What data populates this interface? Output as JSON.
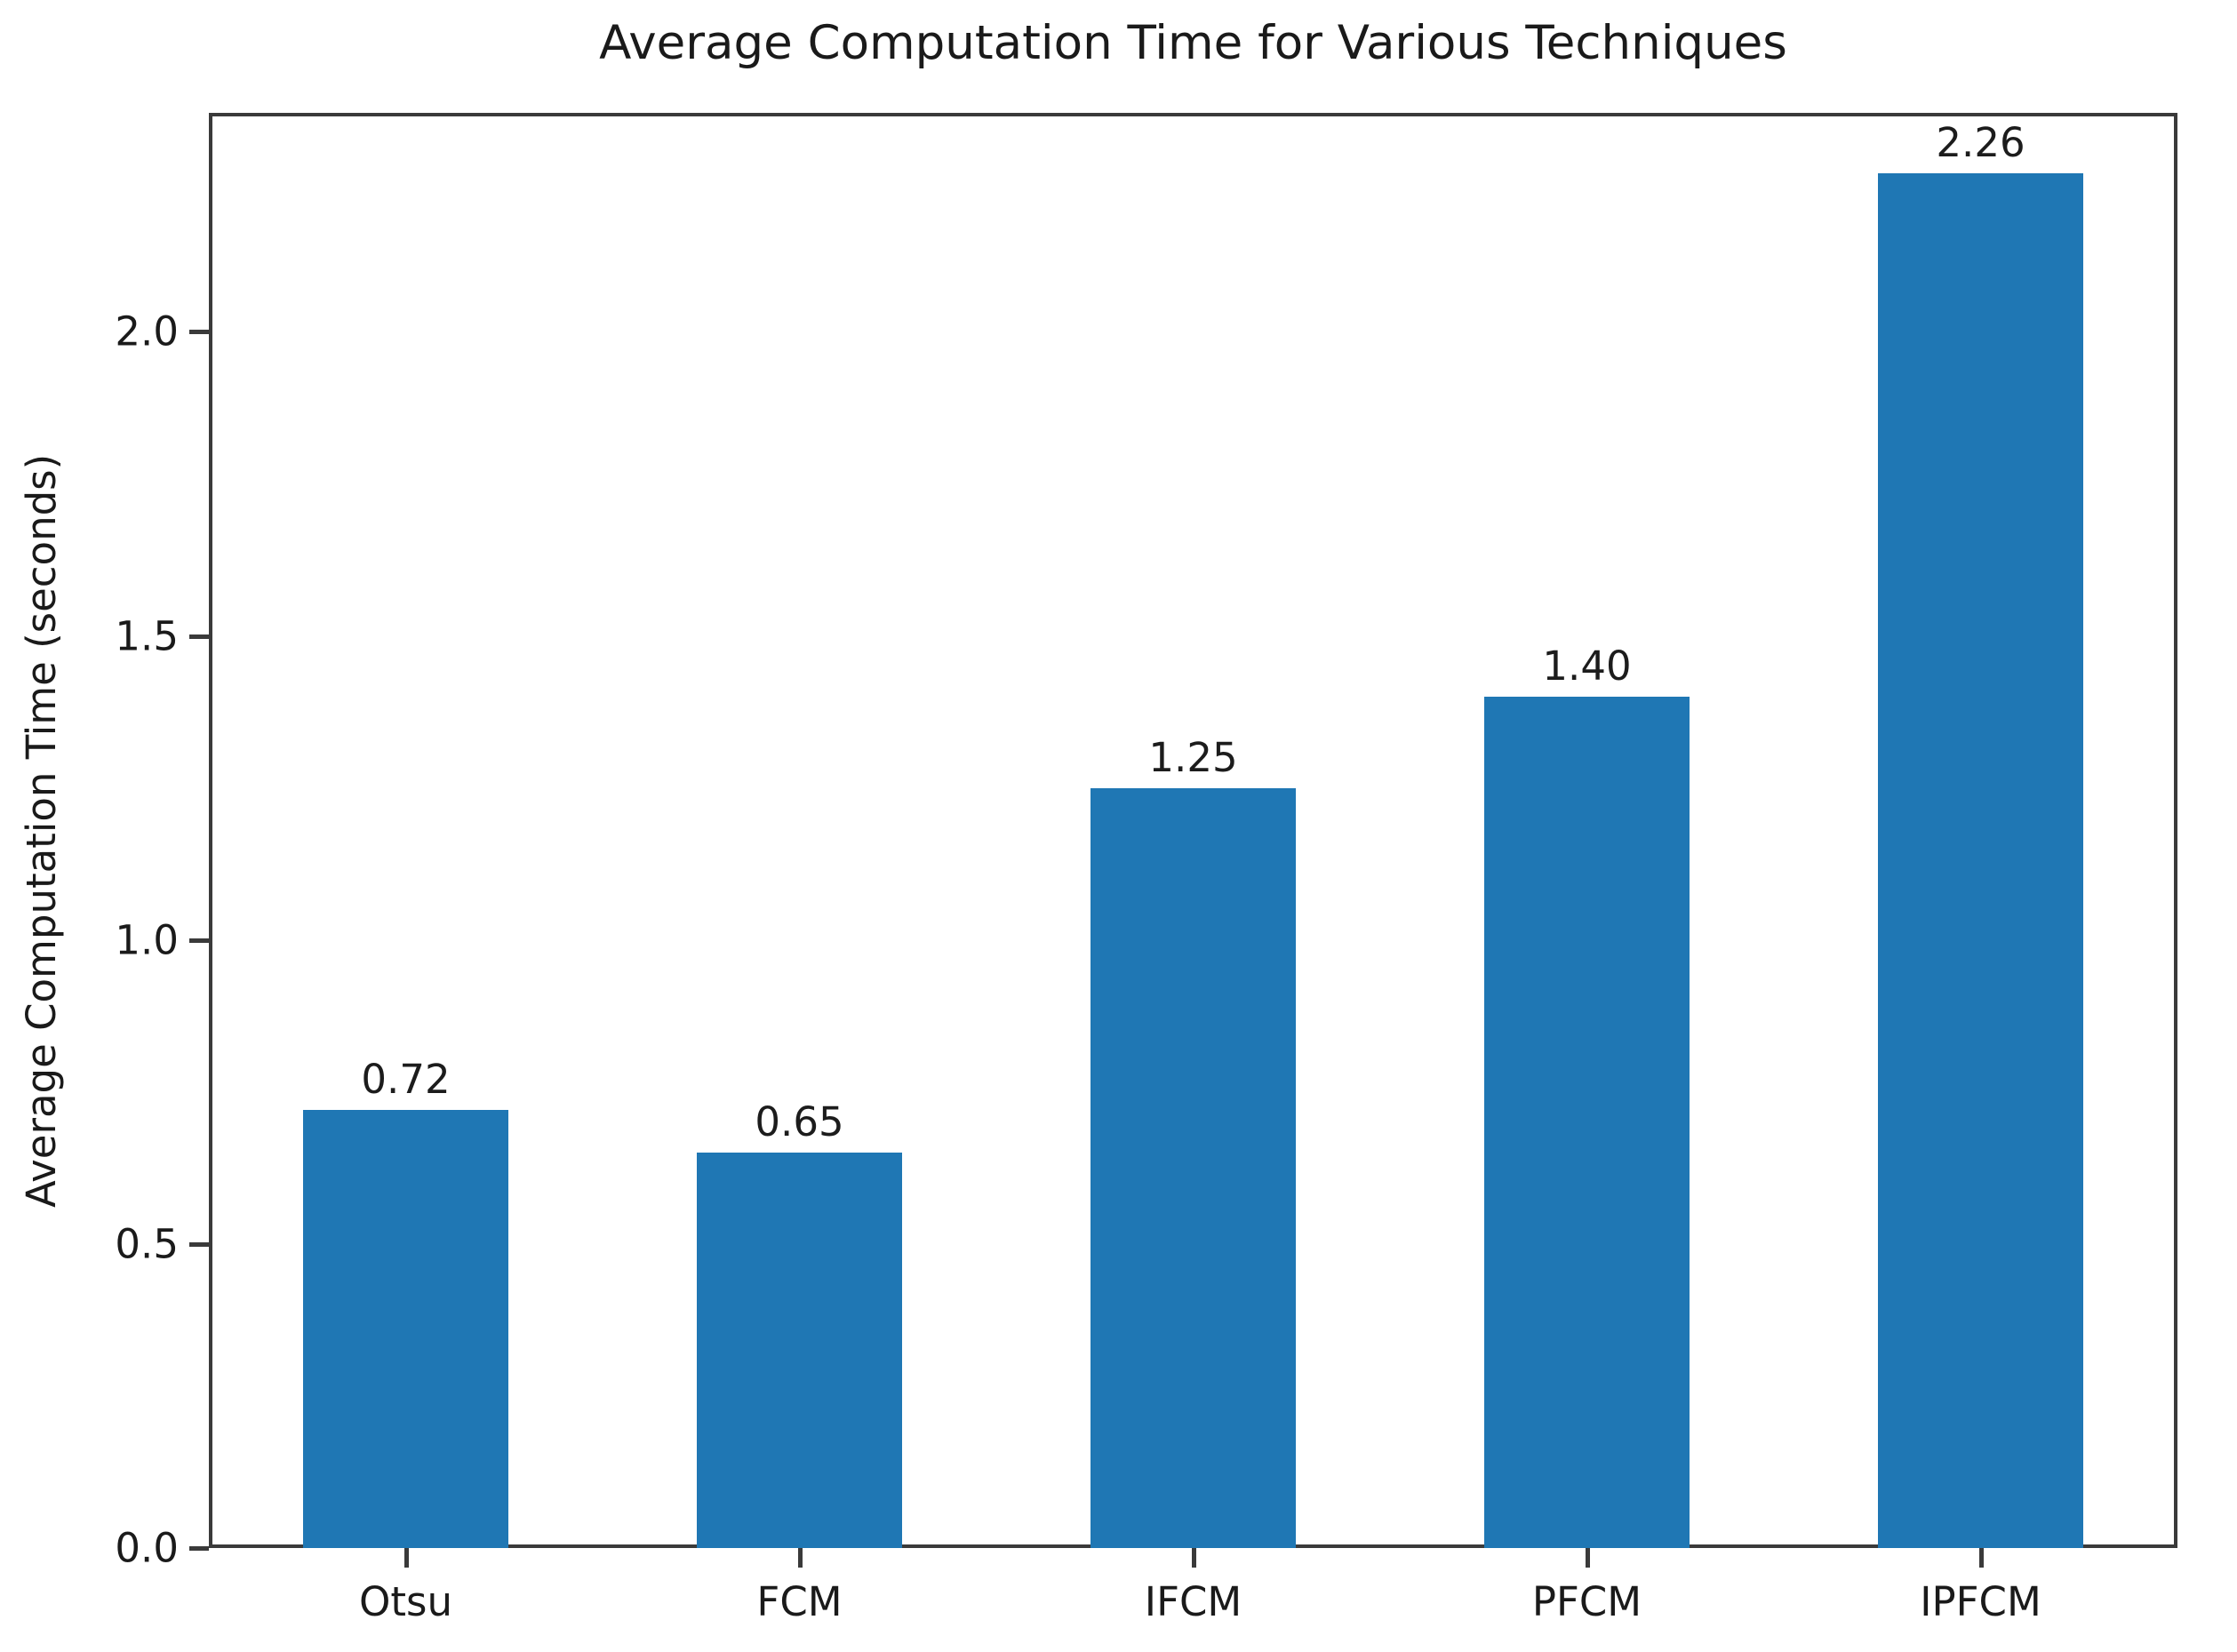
{
  "chart_data": {
    "type": "bar",
    "title": "Average Computation Time for Various Techniques",
    "xlabel": "",
    "ylabel": "Average Computation Time (seconds)",
    "categories": [
      "Otsu",
      "FCM",
      "IFCM",
      "PFCM",
      "IPFCM"
    ],
    "values": [
      0.72,
      0.65,
      1.25,
      1.4,
      2.26
    ],
    "value_labels": [
      "0.72",
      "0.65",
      "1.25",
      "1.40",
      "2.26"
    ],
    "yticks": [
      0.0,
      0.5,
      1.0,
      1.5,
      2.0
    ],
    "ytick_labels": [
      "0.0",
      "0.5",
      "1.0",
      "1.5",
      "2.0"
    ],
    "ylim": [
      0,
      2.36
    ],
    "grid": false,
    "legend_position": "none",
    "colors": {
      "bar": "#1f77b4",
      "text": "#1a1a1a",
      "spine": "#3a3a3a"
    }
  }
}
